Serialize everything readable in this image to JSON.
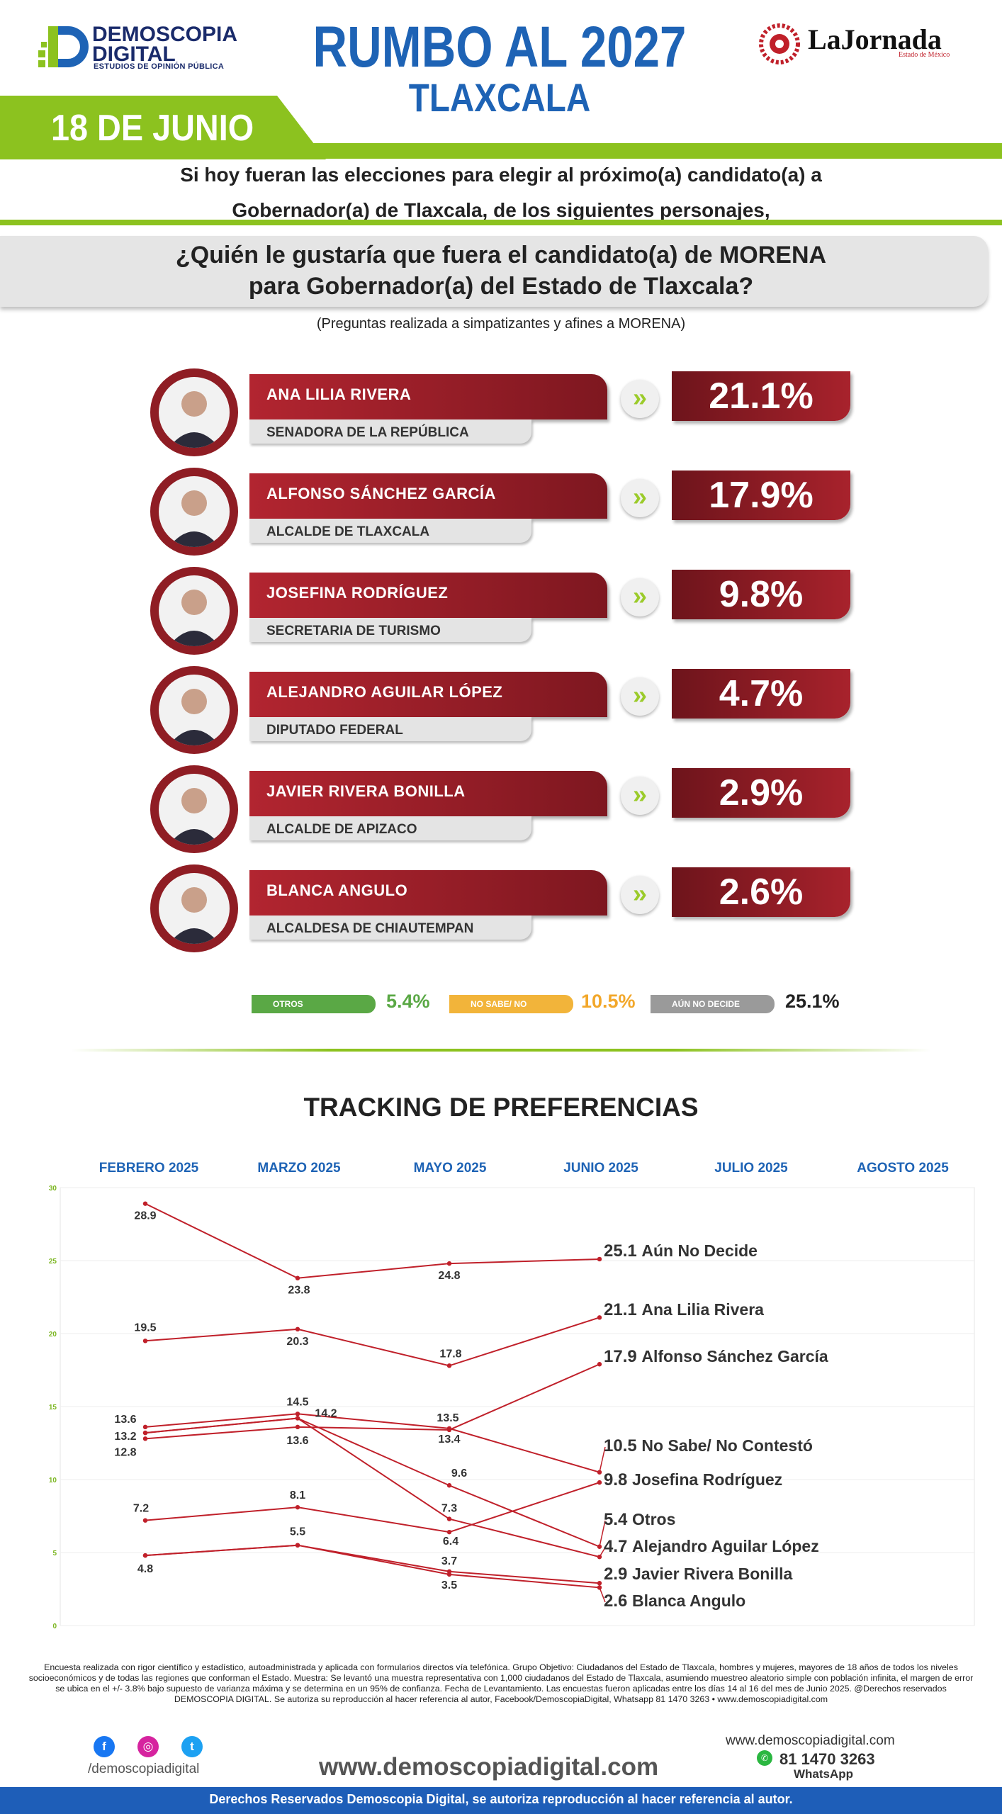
{
  "header": {
    "logo_line1": "DEMOSCOPIA",
    "logo_line2": "DIGITAL",
    "logo_sub": "ESTUDIOS DE OPINIÓN PÚBLICA",
    "title": "RUMBO AL 2027",
    "subtitle": "TLAXCALA",
    "partner_name": "LaJornada",
    "partner_sub": "Estado de México",
    "date": "18 DE JUNIO"
  },
  "intro": {
    "line1": "Si hoy fueran las elecciones para elegir al próximo(a) candidato(a) a",
    "line2": "Gobernador(a) de Tlaxcala, de los siguientes personajes,"
  },
  "question": {
    "line1": "¿Quién le gustaría que fuera el candidato(a) de MORENA",
    "line2": "para Gobernador(a) del Estado de Tlaxcala?",
    "note": "(Preguntas realizada a simpatizantes y afines a MORENA)"
  },
  "candidates": [
    {
      "name": "ANA LILIA RIVERA",
      "role": "SENADORA DE LA REPÚBLICA",
      "pct": "21.1%"
    },
    {
      "name": "ALFONSO SÁNCHEZ GARCÍA",
      "role": "ALCALDE DE TLAXCALA",
      "pct": "17.9%"
    },
    {
      "name": "JOSEFINA RODRÍGUEZ",
      "role": "SECRETARIA DE TURISMO",
      "pct": "9.8%"
    },
    {
      "name": "ALEJANDRO AGUILAR LÓPEZ",
      "role": "DIPUTADO FEDERAL",
      "pct": "4.7%"
    },
    {
      "name": "JAVIER RIVERA BONILLA",
      "role": "ALCALDE DE APIZACO",
      "pct": "2.9%"
    },
    {
      "name": "BLANCA ANGULO",
      "role": "ALCALDESA DE CHIAUTEMPAN",
      "pct": "2.6%"
    }
  ],
  "others": [
    {
      "label": "OTROS",
      "value": "5.4%",
      "color": "#5aa845",
      "value_color": "#5aa845"
    },
    {
      "label": "NO SABE/ NO CONTESTÓ",
      "value": "10.5%",
      "color": "#f2b43a",
      "value_color": "#f2a72a"
    },
    {
      "label": "AÚN NO DECIDE",
      "value": "25.1%",
      "color": "#9a9a9a",
      "value_color": "#222222"
    }
  ],
  "arrow_glyph": "»",
  "tracking_title": "TRACKING DE PREFERENCIAS",
  "chart_data": {
    "type": "line",
    "months": [
      "FEBRERO 2025",
      "MARZO 2025",
      "MAYO 2025",
      "JUNIO 2025",
      "JULIO 2025",
      "AGOSTO 2025"
    ],
    "x": [
      "FEBRERO 2025",
      "MARZO 2025",
      "MAYO 2025",
      "JUNIO 2025"
    ],
    "ylim": [
      0,
      30
    ],
    "yticks": [
      0,
      5,
      10,
      15,
      20,
      25,
      30
    ],
    "grid": true,
    "line_color": "#c0202a",
    "series": [
      {
        "name": "Aún No Decide",
        "values": [
          28.9,
          23.8,
          24.8,
          25.1
        ],
        "show_labels": [
          true,
          true,
          true,
          true
        ]
      },
      {
        "name": "Ana Lilia Rivera",
        "values": [
          19.5,
          20.3,
          17.8,
          21.1
        ],
        "show_labels": [
          true,
          true,
          true,
          true
        ]
      },
      {
        "name": "Alfonso Sánchez García",
        "values": [
          12.8,
          13.6,
          13.4,
          17.9
        ],
        "show_labels": [
          true,
          true,
          true,
          true
        ]
      },
      {
        "name": "No Sabe/ No Contestó",
        "values": [
          13.6,
          14.5,
          13.5,
          10.5
        ],
        "show_labels": [
          true,
          true,
          true,
          true
        ]
      },
      {
        "name": "Josefina Rodríguez",
        "values": [
          7.2,
          8.1,
          6.4,
          9.8
        ],
        "show_labels": [
          true,
          true,
          true,
          true
        ]
      },
      {
        "name": "Otros",
        "values": [
          13.2,
          14.2,
          9.6,
          5.4
        ],
        "show_labels": [
          true,
          true,
          true,
          true
        ]
      },
      {
        "name": "Alejandro Aguilar López",
        "values": [
          13.2,
          14.2,
          7.3,
          4.7
        ],
        "show_labels": [
          false,
          false,
          true,
          true
        ]
      },
      {
        "name": "Javier Rivera Bonilla",
        "values": [
          4.8,
          5.5,
          3.7,
          2.9
        ],
        "show_labels": [
          true,
          true,
          true,
          true
        ]
      },
      {
        "name": "Blanca Angulo",
        "values": [
          4.8,
          5.5,
          3.5,
          2.6
        ],
        "show_labels": [
          false,
          false,
          true,
          true
        ]
      }
    ]
  },
  "footer": {
    "disclaimer": "Encuesta realizada con rigor científico y estadístico, autoadministrada y aplicada con formularios directos vía telefónica. Grupo Objetivo: Ciudadanos del Estado de Tlaxcala, hombres y mujeres, mayores de 18 años de todos los niveles socioeconómicos y de todas las regiones que conforman el Estado. Muestra: Se levantó una muestra representativa con 1,000 ciudadanos del Estado de Tlaxcala, asumiendo muestreo aleatorio simple con población infinita, el margen de error se ubica en el +/- 3.8% bajo supuesto de varianza máxima y se determina en un 95% de confianza. Fecha de Levantamiento. Las encuestas fueron aplicadas entre los días 14 al 16 del mes de Junio 2025. @Derechos reservados DEMOSCOPIA DIGITAL. Se autoriza su reproducción al hacer referencia al autor, Facebook/DemoscopiaDigital, Whatsapp 81 1470 3263 • www.demoscopiadigital.com",
    "handle": "/demoscopiadigital",
    "website_big": "www.demoscopiadigital.com",
    "website_small": "www.demoscopiadigital.com",
    "phone": "81 1470 3263",
    "whatsapp_label": "WhatsApp",
    "rights": "Derechos Reservados Demoscopia Digital, se autoriza reproducción al hacer referencia al autor.",
    "social_icons": [
      "facebook-icon",
      "instagram-icon",
      "twitter-icon"
    ]
  }
}
